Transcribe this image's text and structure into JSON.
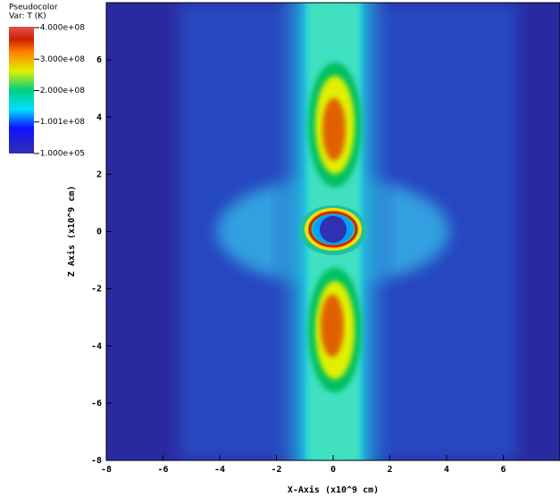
{
  "chart_data": {
    "type": "heatmap",
    "x_label": "X-Axis (x10^9 cm)",
    "y_label": "Z Axis (x10^9 cm)",
    "xlim": [
      -8,
      8
    ],
    "ylim": [
      -8,
      8
    ],
    "xticks": [
      -8,
      -6,
      -4,
      -2,
      0,
      2,
      4,
      6
    ],
    "yticks": [
      -8,
      -6,
      -4,
      -2,
      0,
      2,
      4,
      6
    ],
    "colorbar": {
      "title": "Pseudocolor",
      "subtitle": "Var: T (K)",
      "lim": [
        100000,
        400000000
      ],
      "ticks": [
        {
          "value": 400000000,
          "label": "4.000e+08"
        },
        {
          "value": 300000000,
          "label": "3.000e+08"
        },
        {
          "value": 200000000,
          "label": "2.000e+08"
        },
        {
          "value": 100100000,
          "label": "1.001e+08"
        },
        {
          "value": 100000,
          "label": "1.000e+05"
        }
      ]
    }
  }
}
